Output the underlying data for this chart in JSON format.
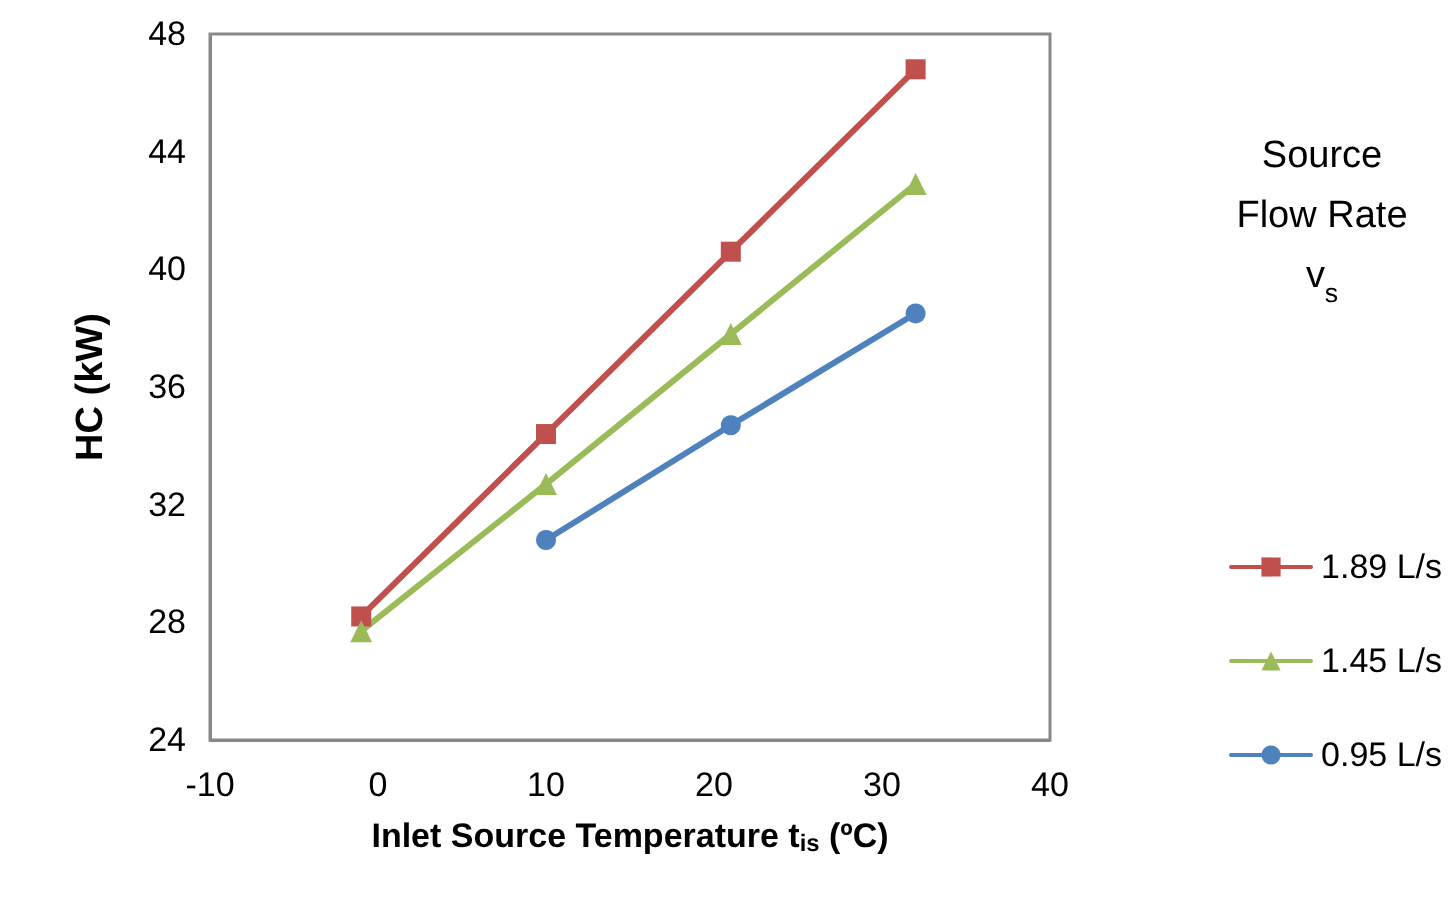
{
  "chart_data": {
    "type": "line",
    "xlabel": "Inlet Source Temperature t$_{is}$ (ºC)",
    "ylabel": "HC (kW)",
    "legend_title": "Source\nFlow Rate\nv$_{s}$",
    "series": [
      {
        "name": "1.89 L/s",
        "color": "#c0504d",
        "marker": "square",
        "x": [
          -1,
          10,
          21,
          32
        ],
        "values": [
          28.2,
          34.4,
          40.6,
          46.8
        ]
      },
      {
        "name": "1.45 L/s",
        "color": "#9bbb59",
        "marker": "triangle",
        "x": [
          -1,
          10,
          21,
          32
        ],
        "values": [
          27.7,
          32.7,
          37.8,
          42.9
        ]
      },
      {
        "name": "0.95 L/s",
        "color": "#4f81bd",
        "marker": "circle",
        "x": [
          10,
          21,
          32
        ],
        "values": [
          30.8,
          34.7,
          38.5
        ]
      }
    ],
    "xlim": [
      -10,
      40
    ],
    "xticks": [
      -10,
      0,
      10,
      20,
      30,
      40
    ],
    "ylim": [
      24,
      48
    ],
    "yticks": [
      24,
      28,
      32,
      36,
      40,
      44,
      48
    ],
    "grid": false,
    "legend": "right",
    "line_style": "solid"
  }
}
